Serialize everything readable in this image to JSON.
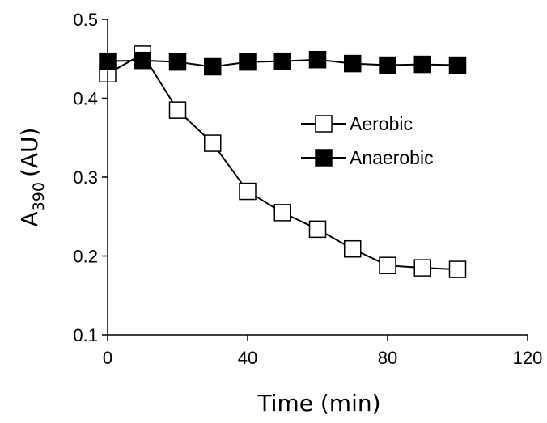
{
  "chart_data": {
    "type": "line",
    "title": "",
    "xlabel": "Time (min)",
    "ylabel": {
      "main": "A",
      "subscript": "390",
      "unit": "(AU)"
    },
    "xlim": [
      0,
      120
    ],
    "ylim": [
      0.1,
      0.5
    ],
    "xticks": [
      0,
      40,
      80,
      120
    ],
    "yticks": [
      0.1,
      0.2,
      0.3,
      0.4,
      0.5
    ],
    "xtick_labels": [
      "0",
      "40",
      "80",
      "120"
    ],
    "ytick_labels": [
      "0.1",
      "0.2",
      "0.3",
      "0.4",
      "0.5"
    ],
    "grid": false,
    "legend_position": "right",
    "series": [
      {
        "name": "Aerobic",
        "marker": "open-square",
        "x": [
          0,
          10,
          20,
          30,
          40,
          50,
          60,
          70,
          80,
          90,
          100
        ],
        "y": [
          0.431,
          0.456,
          0.385,
          0.343,
          0.282,
          0.255,
          0.234,
          0.209,
          0.188,
          0.185,
          0.183
        ]
      },
      {
        "name": "Anaerobic",
        "marker": "filled-square",
        "x": [
          0,
          10,
          20,
          30,
          40,
          50,
          60,
          70,
          80,
          90,
          100
        ],
        "y": [
          0.447,
          0.448,
          0.446,
          0.44,
          0.446,
          0.447,
          0.449,
          0.444,
          0.442,
          0.443,
          0.442
        ]
      }
    ],
    "colors": {
      "line": "#000000",
      "marker_fill_filled": "#000000",
      "marker_fill_open": "#ffffff"
    }
  }
}
